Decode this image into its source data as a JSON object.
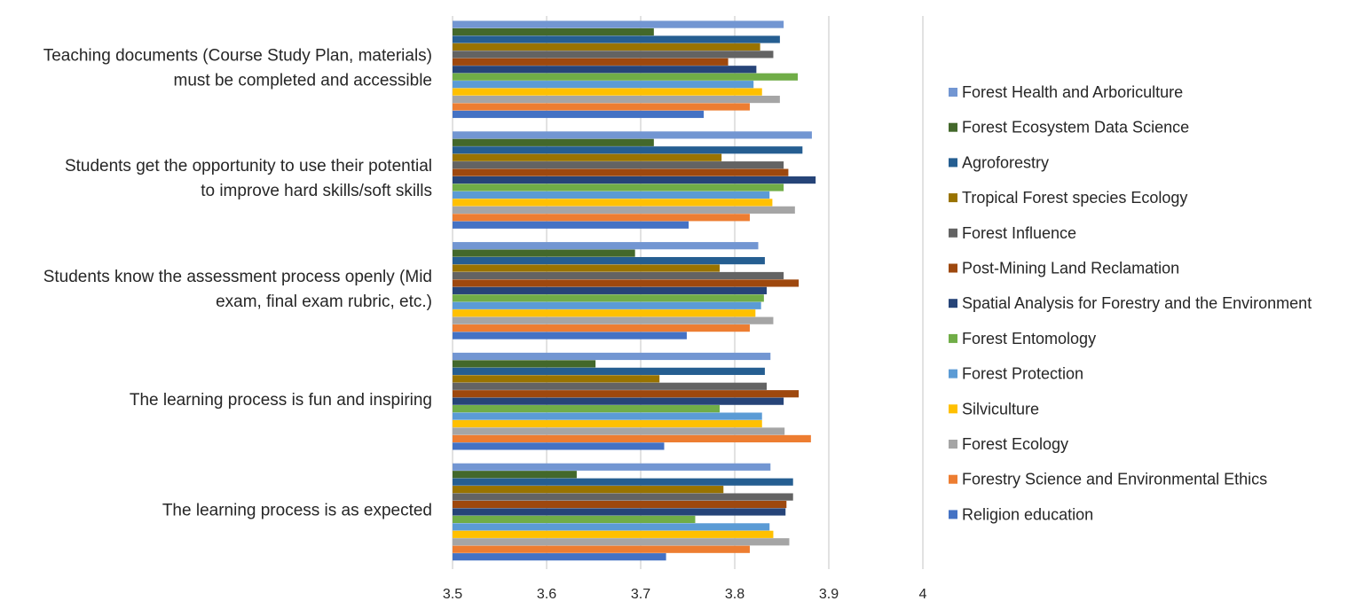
{
  "chart_data": {
    "type": "bar",
    "orientation": "horizontal",
    "title": "",
    "xlabel": "",
    "ylabel": "",
    "xlim": [
      3.5,
      4.0
    ],
    "xticks": [
      "3.5",
      "3.6",
      "3.7",
      "3.8",
      "3.9",
      "4"
    ],
    "grid": true,
    "legend_position": "right",
    "categories": [
      [
        "Teaching documents (Course Study Plan, materials)",
        "must be completed and accessible"
      ],
      [
        "Students get the opportunity to use their potential",
        "to improve hard skills/soft skills"
      ],
      [
        "Students know the assessment process openly (Mid",
        "exam, final exam rubric, etc.)"
      ],
      [
        "The learning process is fun and inspiring"
      ],
      [
        "The learning process is as expected"
      ]
    ],
    "series": [
      {
        "name": "Forest Health and Arboriculture",
        "color": "#7296d2",
        "values": [
          3.852,
          3.882,
          3.825,
          3.838,
          3.838
        ]
      },
      {
        "name": "Forest Ecosystem Data Science",
        "color": "#43682b",
        "values": [
          3.714,
          3.714,
          3.694,
          3.652,
          3.632
        ]
      },
      {
        "name": "Agroforestry",
        "color": "#255e91",
        "values": [
          3.848,
          3.872,
          3.832,
          3.832,
          3.862
        ]
      },
      {
        "name": "Tropical Forest species Ecology",
        "color": "#997300",
        "values": [
          3.827,
          3.786,
          3.784,
          3.72,
          3.788
        ]
      },
      {
        "name": "Forest Influence",
        "color": "#636363",
        "values": [
          3.841,
          3.852,
          3.852,
          3.834,
          3.862
        ]
      },
      {
        "name": "Post-Mining Land Reclamation",
        "color": "#9e480e",
        "values": [
          3.793,
          3.857,
          3.868,
          3.868,
          3.855
        ]
      },
      {
        "name": "Spatial Analysis for Forestry and the Environment",
        "color": "#264478",
        "values": [
          3.823,
          3.886,
          3.834,
          3.852,
          3.854
        ]
      },
      {
        "name": "Forest Entomology",
        "color": "#70ad47",
        "values": [
          3.867,
          3.852,
          3.831,
          3.784,
          3.758
        ]
      },
      {
        "name": "Forest Protection",
        "color": "#5b9bd5",
        "values": [
          3.82,
          3.837,
          3.828,
          3.829,
          3.837
        ]
      },
      {
        "name": "Silviculture",
        "color": "#ffc000",
        "values": [
          3.829,
          3.84,
          3.822,
          3.829,
          3.841
        ]
      },
      {
        "name": "Forest Ecology",
        "color": "#a5a5a5",
        "values": [
          3.848,
          3.864,
          3.841,
          3.853,
          3.858
        ]
      },
      {
        "name": "Forestry Science and Environmental Ethics",
        "color": "#ed7d31",
        "values": [
          3.816,
          3.816,
          3.816,
          3.881,
          3.816
        ]
      },
      {
        "name": "Religion education",
        "color": "#4472c4",
        "values": [
          3.767,
          3.751,
          3.749,
          3.725,
          3.727
        ]
      }
    ]
  }
}
